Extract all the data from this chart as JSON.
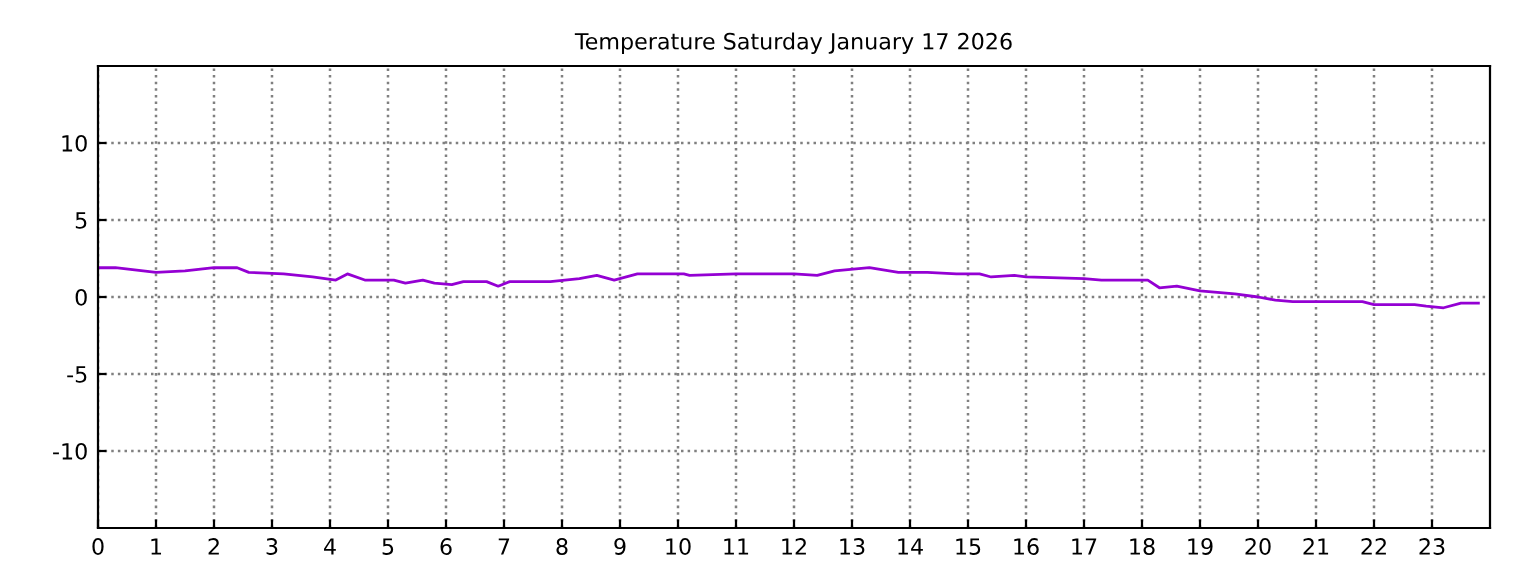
{
  "chart_data": {
    "type": "line",
    "title": "Temperature Saturday January 17 2026",
    "series": [
      {
        "color": "#9400d3",
        "x": [
          0,
          0.3,
          1,
          1.5,
          2,
          2.4,
          2.6,
          3.2,
          3.7,
          4.1,
          4.3,
          4.6,
          5.1,
          5.3,
          5.6,
          5.8,
          6.1,
          6.3,
          6.7,
          6.9,
          7.1,
          7.8,
          8.3,
          8.6,
          8.9,
          9.3,
          10.1,
          10.2,
          11,
          12,
          12.4,
          12.7,
          13.3,
          13.8,
          14.3,
          14.8,
          15.2,
          15.4,
          15.8,
          16,
          17,
          17.3,
          18.1,
          18.3,
          18.6,
          19,
          19.6,
          20,
          20.3,
          20.6,
          21.8,
          22,
          22.7,
          22.9,
          23.2,
          23.5,
          23.8
        ],
        "values": [
          1.9,
          1.9,
          1.6,
          1.7,
          1.9,
          1.9,
          1.6,
          1.5,
          1.3,
          1.1,
          1.5,
          1.1,
          1.1,
          0.9,
          1.1,
          0.9,
          0.8,
          1.0,
          1.0,
          0.7,
          1.0,
          1.0,
          1.2,
          1.4,
          1.1,
          1.5,
          1.5,
          1.4,
          1.5,
          1.5,
          1.4,
          1.7,
          1.9,
          1.6,
          1.6,
          1.5,
          1.5,
          1.3,
          1.4,
          1.3,
          1.2,
          1.1,
          1.1,
          0.6,
          0.7,
          0.4,
          0.2,
          0.0,
          -0.2,
          -0.3,
          -0.3,
          -0.5,
          -0.5,
          -0.6,
          -0.7,
          -0.4,
          -0.4
        ]
      }
    ],
    "xlim": [
      0,
      24
    ],
    "xticks": [
      0,
      1,
      2,
      3,
      4,
      5,
      6,
      7,
      8,
      9,
      10,
      11,
      12,
      13,
      14,
      15,
      16,
      17,
      18,
      19,
      20,
      21,
      22,
      23
    ],
    "ylim": [
      -15,
      15
    ],
    "yticks": [
      -10,
      -5,
      0,
      5,
      10
    ],
    "grid": true
  }
}
